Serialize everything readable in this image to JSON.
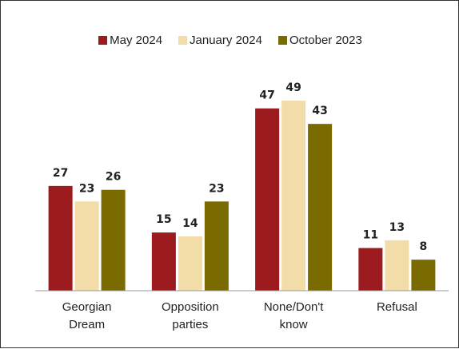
{
  "chart_data": {
    "type": "bar",
    "categories": [
      [
        "Georgian",
        "Dream"
      ],
      [
        "Opposition",
        "parties"
      ],
      [
        "None/Don't",
        "know"
      ],
      [
        "Refusal"
      ]
    ],
    "series": [
      {
        "name": "May 2024",
        "color": "#9B1B1E",
        "values": [
          27,
          15,
          47,
          11
        ]
      },
      {
        "name": "January 2024",
        "color": "#F2DCA8",
        "values": [
          23,
          14,
          49,
          13
        ]
      },
      {
        "name": "October 2023",
        "color": "#7A6B00",
        "values": [
          26,
          23,
          43,
          8
        ]
      }
    ],
    "ylim": [
      0,
      60
    ],
    "grid": false,
    "legend_position": "top-center"
  }
}
